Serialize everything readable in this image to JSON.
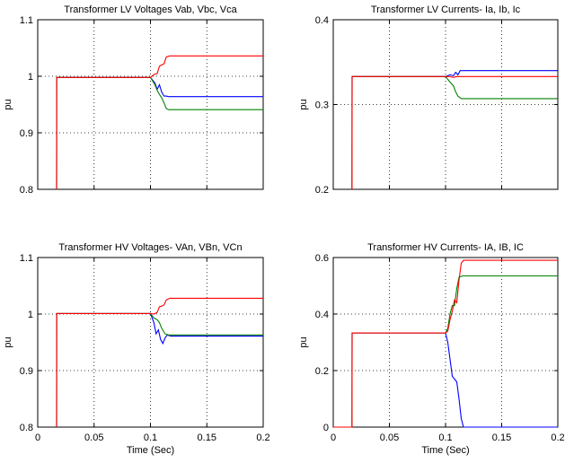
{
  "chart_data": [
    {
      "type": "line",
      "title": "Transformer LV Voltages Vab, Vbc, Vca",
      "xlabel": "",
      "ylabel": "pu",
      "xlim": [
        0,
        0.2
      ],
      "ylim": [
        0.8,
        1.1
      ],
      "xticks": [],
      "yticks": [
        "0.8",
        "0.9",
        "1",
        "1.1"
      ],
      "ytick_values": [
        0.8,
        0.9,
        1.0,
        1.1
      ],
      "xtick_values": [
        0,
        0.05,
        0.1,
        0.15,
        0.2
      ],
      "grid": true,
      "series": [
        {
          "color": "#0000ff",
          "x": [
            0.0167,
            0.0167,
            0.0168,
            0.1,
            0.104,
            0.106,
            0.108,
            0.11,
            0.112,
            0.114,
            0.116,
            0.2
          ],
          "y": [
            0.8,
            0.8,
            0.998,
            0.998,
            0.988,
            0.977,
            0.985,
            0.972,
            0.965,
            0.965,
            0.964,
            0.964
          ]
        },
        {
          "color": "#008000",
          "x": [
            0.0167,
            0.0167,
            0.0168,
            0.1,
            0.104,
            0.106,
            0.108,
            0.11,
            0.112,
            0.114,
            0.116,
            0.2
          ],
          "y": [
            0.8,
            0.8,
            0.998,
            0.998,
            0.985,
            0.975,
            0.968,
            0.962,
            0.953,
            0.943,
            0.941,
            0.941
          ]
        },
        {
          "color": "#ff0000",
          "x": [
            0.0167,
            0.0167,
            0.0168,
            0.1,
            0.103,
            0.106,
            0.108,
            0.11,
            0.112,
            0.114,
            0.117,
            0.2
          ],
          "y": [
            0.8,
            0.8,
            0.998,
            0.998,
            1.003,
            1.005,
            1.018,
            1.02,
            1.022,
            1.034,
            1.036,
            1.036
          ]
        }
      ]
    },
    {
      "type": "line",
      "title": "Transformer LV Currents- Ia, Ib, Ic",
      "xlabel": "",
      "ylabel": "pu",
      "xlim": [
        0,
        0.2
      ],
      "ylim": [
        0.2,
        0.4
      ],
      "xticks": [],
      "yticks": [
        "0.2",
        "0.3",
        "0.4"
      ],
      "ytick_values": [
        0.2,
        0.3,
        0.4
      ],
      "xtick_values": [
        0,
        0.05,
        0.1,
        0.15,
        0.2
      ],
      "grid": true,
      "series": [
        {
          "color": "#0000ff",
          "x": [
            0.0167,
            0.0167,
            0.0168,
            0.1,
            0.104,
            0.107,
            0.109,
            0.111,
            0.113,
            0.116,
            0.2
          ],
          "y": [
            0.2,
            0.2,
            0.333,
            0.333,
            0.335,
            0.334,
            0.338,
            0.335,
            0.34,
            0.34,
            0.34
          ]
        },
        {
          "color": "#008000",
          "x": [
            0.0167,
            0.0167,
            0.0168,
            0.1,
            0.103,
            0.105,
            0.107,
            0.109,
            0.111,
            0.114,
            0.2
          ],
          "y": [
            0.2,
            0.2,
            0.333,
            0.333,
            0.328,
            0.325,
            0.322,
            0.315,
            0.31,
            0.307,
            0.307
          ]
        },
        {
          "color": "#ff0000",
          "x": [
            0.0167,
            0.0167,
            0.0168,
            0.1,
            0.104,
            0.107,
            0.11,
            0.113,
            0.2
          ],
          "y": [
            0.2,
            0.2,
            0.333,
            0.333,
            0.333,
            0.332,
            0.333,
            0.333,
            0.333
          ]
        }
      ]
    },
    {
      "type": "line",
      "title": "Transformer HV Voltages-  VAn, VBn, VCn",
      "xlabel": "Time (Sec)",
      "ylabel": "pu",
      "xlim": [
        0,
        0.2
      ],
      "ylim": [
        0.8,
        1.1
      ],
      "xticks": [
        "0",
        "0.05",
        "0.1",
        "0.15",
        "0.2"
      ],
      "yticks": [
        "0.8",
        "0.9",
        "1",
        "1.1"
      ],
      "ytick_values": [
        0.8,
        0.9,
        1.0,
        1.1
      ],
      "xtick_values": [
        0,
        0.05,
        0.1,
        0.15,
        0.2
      ],
      "grid": true,
      "series": [
        {
          "color": "#0000ff",
          "x": [
            0.0167,
            0.0167,
            0.0168,
            0.1,
            0.103,
            0.105,
            0.107,
            0.109,
            0.111,
            0.113,
            0.115,
            0.118,
            0.2
          ],
          "y": [
            0.8,
            0.8,
            1.001,
            1.001,
            0.985,
            0.965,
            0.972,
            0.955,
            0.948,
            0.958,
            0.963,
            0.961,
            0.961
          ]
        },
        {
          "color": "#008000",
          "x": [
            0.0167,
            0.0167,
            0.0168,
            0.1,
            0.103,
            0.106,
            0.108,
            0.11,
            0.113,
            0.116,
            0.2
          ],
          "y": [
            0.8,
            0.8,
            1.001,
            1.001,
            0.993,
            0.99,
            0.985,
            0.975,
            0.965,
            0.963,
            0.963
          ]
        },
        {
          "color": "#ff0000",
          "x": [
            0.0167,
            0.0167,
            0.0168,
            0.1,
            0.103,
            0.106,
            0.108,
            0.11,
            0.112,
            0.114,
            0.117,
            0.2
          ],
          "y": [
            0.8,
            0.8,
            1.001,
            1.001,
            1.0,
            1.003,
            1.013,
            1.014,
            1.016,
            1.025,
            1.028,
            1.028
          ]
        }
      ]
    },
    {
      "type": "line",
      "title": "Transformer HV Currents- IA, IB, IC",
      "xlabel": "Time (Sec)",
      "ylabel": "pu",
      "xlim": [
        0,
        0.2
      ],
      "ylim": [
        0,
        0.6
      ],
      "xticks": [
        "0",
        "0.05",
        "0.1",
        "0.15",
        "0.2"
      ],
      "yticks": [
        "0",
        "0.2",
        "0.4",
        "0.6"
      ],
      "ytick_values": [
        0,
        0.2,
        0.4,
        0.6
      ],
      "xtick_values": [
        0,
        0.05,
        0.1,
        0.15,
        0.2
      ],
      "grid": true,
      "series": [
        {
          "color": "#0000ff",
          "x": [
            0,
            0.0167,
            0.0168,
            0.1,
            0.102,
            0.104,
            0.106,
            0.108,
            0.11,
            0.112,
            0.114,
            0.116,
            0.2
          ],
          "y": [
            0,
            0,
            0.333,
            0.333,
            0.3,
            0.24,
            0.18,
            0.17,
            0.16,
            0.1,
            0.03,
            0.0,
            0.0
          ]
        },
        {
          "color": "#008000",
          "x": [
            0,
            0.0167,
            0.0168,
            0.1,
            0.102,
            0.104,
            0.106,
            0.108,
            0.11,
            0.112,
            0.115,
            0.2
          ],
          "y": [
            0,
            0,
            0.333,
            0.333,
            0.35,
            0.4,
            0.43,
            0.43,
            0.49,
            0.53,
            0.535,
            0.535
          ]
        },
        {
          "color": "#ff0000",
          "x": [
            0,
            0.0167,
            0.0168,
            0.1,
            0.102,
            0.104,
            0.106,
            0.108,
            0.11,
            0.112,
            0.114,
            0.116,
            0.2
          ],
          "y": [
            0,
            0,
            0.333,
            0.333,
            0.34,
            0.38,
            0.41,
            0.45,
            0.44,
            0.52,
            0.58,
            0.59,
            0.59
          ]
        }
      ]
    }
  ]
}
